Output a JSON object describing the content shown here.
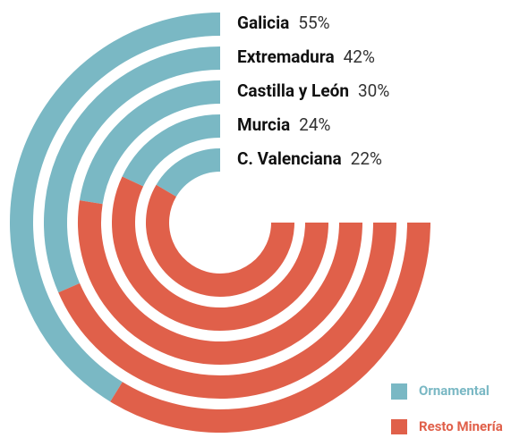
{
  "chart_data": {
    "type": "radial-bar",
    "categories": [
      "Galicia",
      "Extremadura",
      "Castilla y León",
      "Murcia",
      "C. Valenciana"
    ],
    "series": [
      {
        "name": "Ornamental",
        "color": "#7ab8c4",
        "values": [
          55,
          42,
          30,
          24,
          22
        ],
        "value_labels": [
          "55%",
          "42%",
          "30%",
          "24%",
          "22%"
        ]
      },
      {
        "name": "Resto Minería",
        "color": "#e0604a",
        "values": [
          45,
          58,
          70,
          76,
          78
        ]
      }
    ],
    "legend": "lower right"
  }
}
